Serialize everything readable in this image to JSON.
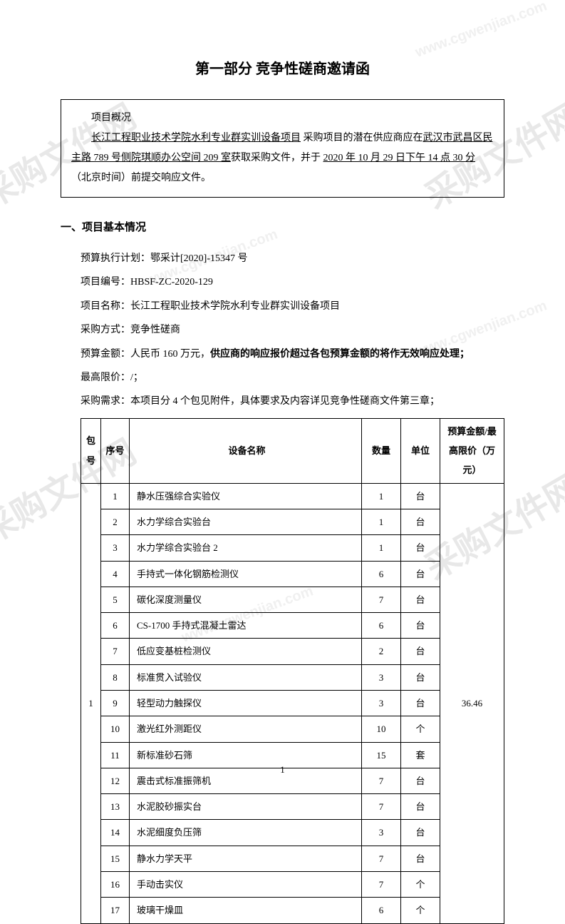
{
  "title": "第一部分  竞争性磋商邀请函",
  "overview": {
    "heading": "项目概况",
    "project_underline": "长江工程职业技术学院水利专业群实训设备项目",
    "text_mid1": "  采购项目的潜在供应商应在",
    "address_underline": "武汉市武昌区民主路 789 号侧院琪顺办公空间 209 室",
    "text_mid2": "获取采购文件，并于 ",
    "date_underline": "2020 年 10 月 29 日下午 14 点 30 分",
    "text_end": "（北京时间）前提交响应文件。"
  },
  "section1": {
    "title": "一、项目基本情况",
    "budget_plan_label": "预算执行计划：",
    "budget_plan_value": "鄂采计[2020]-15347 号",
    "project_no_label": "项目编号：",
    "project_no_value": "HBSF-ZC-2020-129",
    "project_name_label": "项目名称：",
    "project_name_value": "长江工程职业技术学院水利专业群实训设备项目",
    "method_label": "采购方式：",
    "method_value": "竞争性磋商",
    "budget_label": "预算金额：",
    "budget_value": "人民币 160 万元，",
    "budget_bold": "供应商的响应报价超过各包预算金额的将作无效响应处理；",
    "max_price_label": "最高限价：",
    "max_price_value": "/；",
    "demand_label": "采购需求：",
    "demand_value": "本项目分 4 个包见附件，具体要求及内容详见竞争性磋商文件第三章；"
  },
  "table": {
    "headers": {
      "pkg": "包号",
      "seq": "序号",
      "name": "设备名称",
      "qty": "数量",
      "unit": "单位",
      "budget": "预算金额/最高限价（万元）"
    },
    "package_no": "1",
    "budget_value": "36.46",
    "rows": [
      {
        "seq": "1",
        "name": "静水压强综合实验仪",
        "qty": "1",
        "unit": "台"
      },
      {
        "seq": "2",
        "name": "水力学综合实验台",
        "qty": "1",
        "unit": "台"
      },
      {
        "seq": "3",
        "name": "水力学综合实验台 2",
        "qty": "1",
        "unit": "台"
      },
      {
        "seq": "4",
        "name": "手持式一体化钢筋检测仪",
        "qty": "6",
        "unit": "台"
      },
      {
        "seq": "5",
        "name": "碳化深度测量仪",
        "qty": "7",
        "unit": "台"
      },
      {
        "seq": "6",
        "name": "CS-1700 手持式混凝土雷达",
        "qty": "6",
        "unit": "台"
      },
      {
        "seq": "7",
        "name": "低应变基桩检测仪",
        "qty": "2",
        "unit": "台"
      },
      {
        "seq": "8",
        "name": "标准贯入试验仪",
        "qty": "3",
        "unit": "台"
      },
      {
        "seq": "9",
        "name": "轻型动力触探仪",
        "qty": "3",
        "unit": "台"
      },
      {
        "seq": "10",
        "name": "激光红外测距仪",
        "qty": "10",
        "unit": "个"
      },
      {
        "seq": "11",
        "name": "新标准砂石筛",
        "qty": "15",
        "unit": "套"
      },
      {
        "seq": "12",
        "name": "震击式标准振筛机",
        "qty": "7",
        "unit": "台"
      },
      {
        "seq": "13",
        "name": "水泥胶砂振实台",
        "qty": "7",
        "unit": "台"
      },
      {
        "seq": "14",
        "name": "水泥细度负压筛",
        "qty": "3",
        "unit": "台"
      },
      {
        "seq": "15",
        "name": "静水力学天平",
        "qty": "7",
        "unit": "台"
      },
      {
        "seq": "16",
        "name": "手动击实仪",
        "qty": "7",
        "unit": "个"
      },
      {
        "seq": "17",
        "name": "玻璃干燥皿",
        "qty": "6",
        "unit": "个"
      }
    ]
  },
  "page_number": "1",
  "watermark": "采购文件网",
  "watermark_url": "www.cgwenjian.com"
}
